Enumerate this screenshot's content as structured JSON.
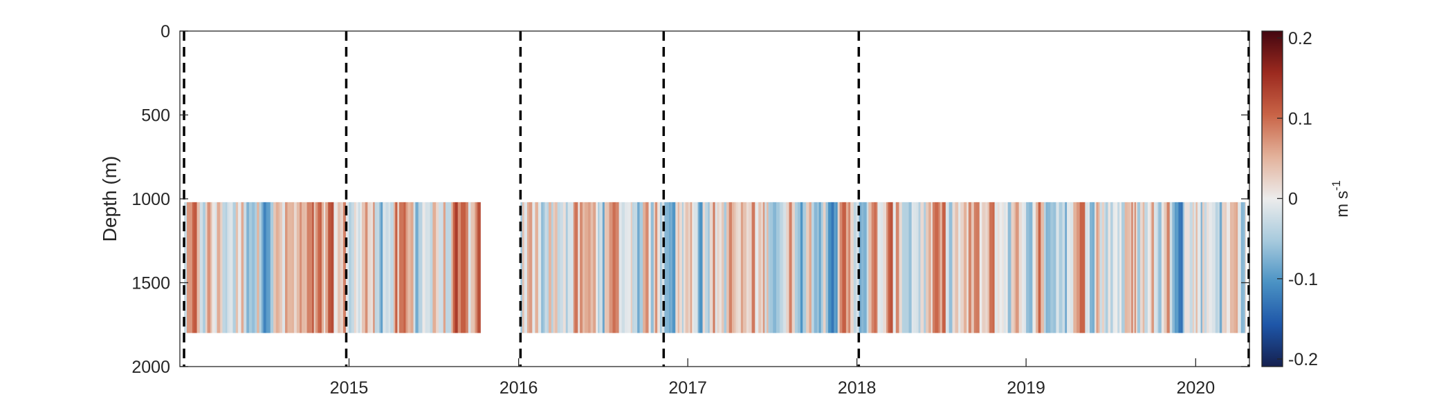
{
  "chart_data": {
    "type": "heatmap",
    "title": "",
    "xlabel": "",
    "ylabel": "Depth (m)",
    "xlim": [
      "2014-07-01",
      "2020-10-25"
    ],
    "ylim": [
      0,
      2000
    ],
    "y_reversed": true,
    "x_ticks": [
      "2015",
      "2016",
      "2017",
      "2018",
      "2019",
      "2020"
    ],
    "y_ticks": [
      "0",
      "500",
      "1000",
      "1500",
      "2000"
    ],
    "data_depth_range": [
      1020,
      1800
    ],
    "data_segments": [
      {
        "start": "2014-07-10",
        "end": "2016-04-10"
      },
      {
        "start": "2016-07-05",
        "end": "2020-10-18"
      }
    ],
    "deployment_boundaries": [
      "2014-07-10",
      "2015-06-25",
      "2016-07-05",
      "2017-05-10",
      "2018-07-05",
      "2020-10-25"
    ],
    "colorbar": {
      "label": "m s",
      "label_superscript": "-1",
      "range": [
        -0.2,
        0.2
      ],
      "ticks": [
        "0.2",
        "0.1",
        "0",
        "-0.1",
        "-0.2"
      ],
      "colormap": [
        "#15204f",
        "#1e56a8",
        "#4a92c4",
        "#a7cadd",
        "#ececec",
        "#e3b29b",
        "#c96447",
        "#9c2a1f",
        "#430610"
      ]
    },
    "sampling": "depth-uniform velocity anomaly per time step (stripes)"
  }
}
